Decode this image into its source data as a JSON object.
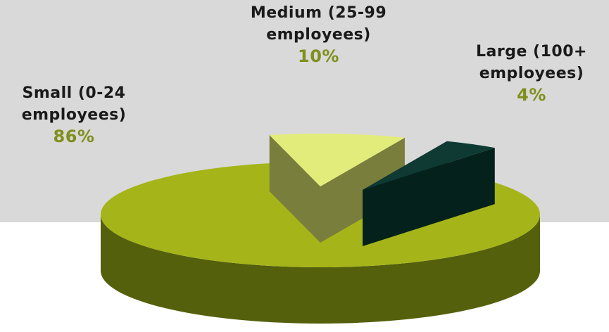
{
  "chart_data": {
    "type": "pie",
    "style": "3d-exploded",
    "slices": [
      {
        "label": "Small (0-24 employees)",
        "value": 86,
        "display": "86%",
        "color": "#a5b519",
        "side_color": "#55600c"
      },
      {
        "label": "Medium (25-99 employees)",
        "value": 10,
        "display": "10%",
        "color": "#e2ec7a",
        "side_color": "#7a7e3c"
      },
      {
        "label": "Large (100+ employees)",
        "value": 4,
        "display": "4%",
        "color": "#0e3a33",
        "side_color": "#04211c"
      }
    ],
    "label_color": "#1a1a1a",
    "percent_color": "#7f8f1a",
    "background_color": "#d9d9d9"
  },
  "labels": {
    "small": {
      "name": "Small (0-24 employees)",
      "pct": "86%"
    },
    "medium": {
      "name": "Medium (25-99 employees)",
      "pct": "10%"
    },
    "large": {
      "name": "Large (100+ employees)",
      "pct": "4%"
    }
  }
}
